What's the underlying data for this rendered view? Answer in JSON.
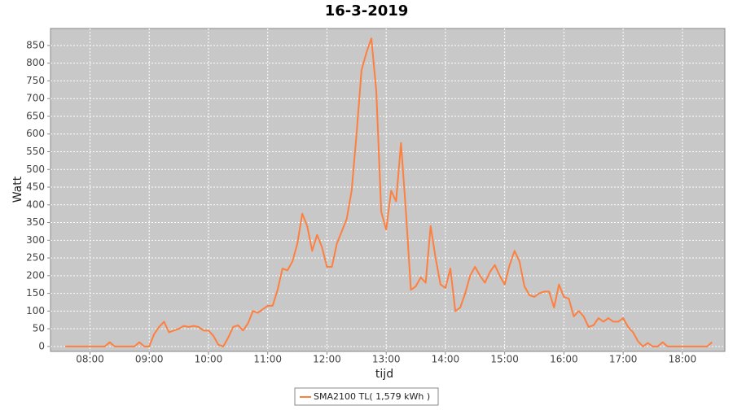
{
  "chart_data": {
    "type": "line",
    "title": "16-3-2019",
    "x_label": "tijd",
    "y_label": "Watt",
    "x": [
      "07:35",
      "07:40",
      "07:45",
      "07:50",
      "07:55",
      "08:00",
      "08:05",
      "08:10",
      "08:15",
      "08:20",
      "08:25",
      "08:30",
      "08:35",
      "08:40",
      "08:45",
      "08:50",
      "08:55",
      "09:00",
      "09:05",
      "09:10",
      "09:15",
      "09:20",
      "09:25",
      "09:30",
      "09:35",
      "09:40",
      "09:45",
      "09:50",
      "09:55",
      "10:00",
      "10:05",
      "10:10",
      "10:15",
      "10:20",
      "10:25",
      "10:30",
      "10:35",
      "10:40",
      "10:45",
      "10:50",
      "10:55",
      "11:00",
      "11:05",
      "11:10",
      "11:15",
      "11:20",
      "11:25",
      "11:30",
      "11:35",
      "11:40",
      "11:45",
      "11:50",
      "11:55",
      "12:00",
      "12:05",
      "12:10",
      "12:15",
      "12:20",
      "12:25",
      "12:30",
      "12:35",
      "12:40",
      "12:45",
      "12:50",
      "12:55",
      "13:00",
      "13:05",
      "13:10",
      "13:15",
      "13:20",
      "13:25",
      "13:30",
      "13:35",
      "13:40",
      "13:45",
      "13:50",
      "13:55",
      "14:00",
      "14:05",
      "14:10",
      "14:15",
      "14:20",
      "14:25",
      "14:30",
      "14:35",
      "14:40",
      "14:45",
      "14:50",
      "14:55",
      "15:00",
      "15:05",
      "15:10",
      "15:15",
      "15:20",
      "15:25",
      "15:30",
      "15:35",
      "15:40",
      "15:45",
      "15:50",
      "15:55",
      "16:00",
      "16:05",
      "16:10",
      "16:15",
      "16:20",
      "16:25",
      "16:30",
      "16:35",
      "16:40",
      "16:45",
      "16:50",
      "16:55",
      "17:00",
      "17:05",
      "17:10",
      "17:15",
      "17:20",
      "17:25",
      "17:30",
      "17:35",
      "17:40",
      "17:45",
      "17:50",
      "17:55",
      "18:00",
      "18:05",
      "18:10",
      "18:15",
      "18:20",
      "18:25",
      "18:30"
    ],
    "series": [
      {
        "name": "SMA2100 TL( 1,579 kWh )",
        "color": "#ff7f3f",
        "values": [
          0,
          0,
          0,
          0,
          0,
          0,
          0,
          0,
          0,
          12,
          0,
          0,
          0,
          0,
          0,
          12,
          0,
          0,
          35,
          55,
          70,
          40,
          45,
          50,
          58,
          55,
          58,
          55,
          45,
          45,
          30,
          5,
          0,
          25,
          55,
          60,
          45,
          65,
          100,
          95,
          105,
          115,
          115,
          160,
          220,
          215,
          240,
          290,
          375,
          340,
          270,
          315,
          280,
          225,
          225,
          290,
          325,
          360,
          440,
          600,
          780,
          830,
          870,
          720,
          380,
          330,
          440,
          410,
          575,
          380,
          160,
          170,
          195,
          180,
          340,
          250,
          175,
          165,
          220,
          100,
          110,
          150,
          200,
          225,
          200,
          180,
          210,
          230,
          200,
          175,
          230,
          270,
          240,
          170,
          145,
          140,
          150,
          155,
          155,
          110,
          175,
          140,
          135,
          85,
          100,
          85,
          55,
          60,
          80,
          70,
          80,
          70,
          70,
          80,
          55,
          40,
          15,
          0,
          10,
          0,
          0,
          12,
          0,
          0,
          0,
          0,
          0,
          0,
          0,
          0,
          0,
          12
        ]
      }
    ],
    "xlim": [
      "07:20",
      "18:43"
    ],
    "xticks": [
      "08:00",
      "09:00",
      "10:00",
      "11:00",
      "12:00",
      "13:00",
      "14:00",
      "15:00",
      "16:00",
      "17:00",
      "18:00"
    ],
    "ylim": [
      -14,
      898
    ],
    "yticks": [
      0,
      50,
      100,
      150,
      200,
      250,
      300,
      350,
      400,
      450,
      500,
      550,
      600,
      650,
      700,
      750,
      800,
      850
    ],
    "grid": true,
    "legend": "bottom"
  }
}
